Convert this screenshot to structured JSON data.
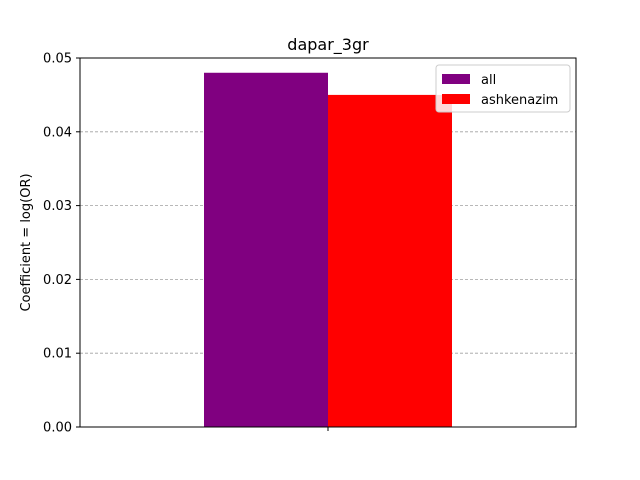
{
  "chart_data": {
    "type": "bar",
    "title": "dapar_3gr",
    "xlabel": "",
    "ylabel": "Coefficient = log(OR)",
    "categories": [
      ""
    ],
    "series": [
      {
        "name": "all",
        "values": [
          0.048
        ],
        "color": "#800080"
      },
      {
        "name": "ashkenazim",
        "values": [
          0.045
        ],
        "color": "#ff0000"
      }
    ],
    "ylim": [
      0,
      0.05
    ],
    "yticks": [
      "0.00",
      "0.01",
      "0.02",
      "0.03",
      "0.04",
      "0.05"
    ],
    "grid": "y-dashed",
    "legend_position": "top-right"
  }
}
